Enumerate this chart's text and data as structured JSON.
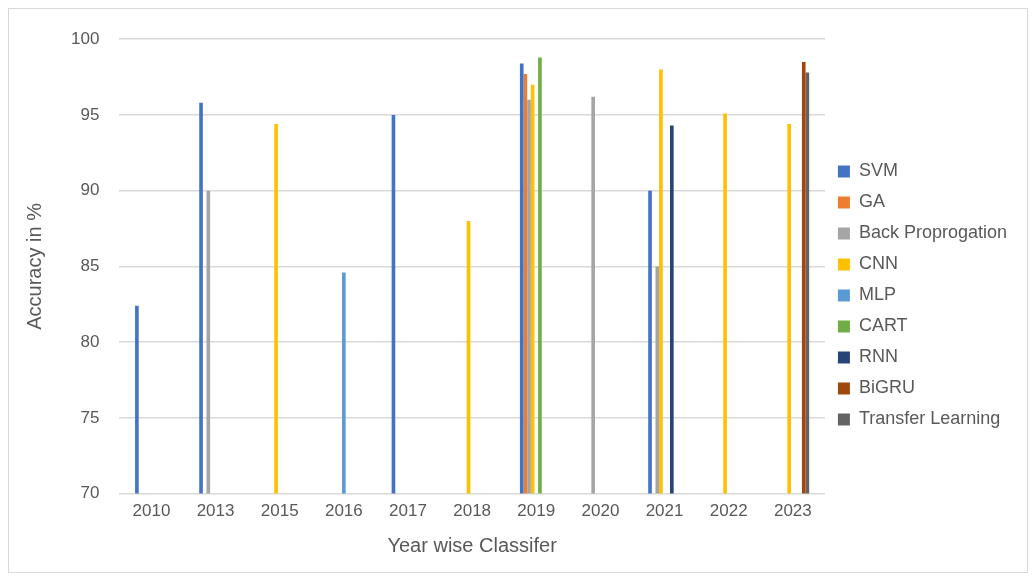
{
  "chart_data": {
    "type": "bar",
    "xlabel": "Year wise Classifer",
    "ylabel": "Accuracy in %",
    "categories": [
      "2010",
      "2013",
      "2015",
      "2016",
      "2017",
      "2018",
      "2019",
      "2020",
      "2021",
      "2022",
      "2023"
    ],
    "series": [
      {
        "name": "SVM",
        "color": "#4472c4",
        "values": [
          82.4,
          95.8,
          null,
          null,
          95.0,
          null,
          98.4,
          null,
          90.0,
          null,
          null
        ]
      },
      {
        "name": "GA",
        "color": "#ed7d31",
        "values": [
          null,
          null,
          null,
          null,
          null,
          null,
          97.7,
          null,
          null,
          null,
          null
        ]
      },
      {
        "name": "Back Proprogation",
        "color": "#a5a5a5",
        "values": [
          null,
          90.0,
          null,
          null,
          null,
          null,
          96.0,
          96.2,
          85.0,
          null,
          null
        ]
      },
      {
        "name": "CNN",
        "color": "#ffc000",
        "values": [
          null,
          null,
          94.4,
          null,
          null,
          88.0,
          97.0,
          null,
          98.0,
          95.1,
          94.4
        ]
      },
      {
        "name": "MLP",
        "color": "#5b9bd5",
        "values": [
          null,
          null,
          null,
          84.6,
          null,
          null,
          null,
          null,
          null,
          null,
          null
        ]
      },
      {
        "name": "CART",
        "color": "#70ad47",
        "values": [
          null,
          null,
          null,
          null,
          null,
          null,
          98.8,
          null,
          null,
          null,
          null
        ]
      },
      {
        "name": "RNN",
        "color": "#264478",
        "values": [
          null,
          null,
          null,
          null,
          null,
          null,
          null,
          null,
          94.3,
          null,
          null
        ]
      },
      {
        "name": "BiGRU",
        "color": "#9e480e",
        "values": [
          null,
          null,
          null,
          null,
          null,
          null,
          null,
          null,
          null,
          null,
          98.5
        ]
      },
      {
        "name": "Transfer Learning",
        "color": "#636363",
        "values": [
          null,
          null,
          null,
          null,
          null,
          null,
          null,
          null,
          null,
          null,
          97.8
        ]
      }
    ],
    "ylim": [
      70,
      100
    ],
    "yticks": [
      70,
      75,
      80,
      85,
      90,
      95,
      100
    ],
    "grid": "y",
    "legend": "right"
  }
}
